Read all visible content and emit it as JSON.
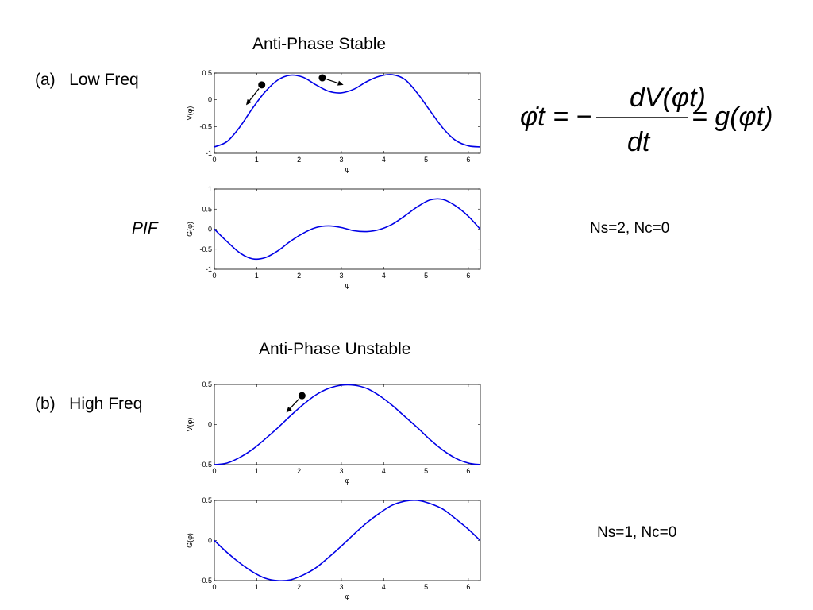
{
  "sections": [
    {
      "title": "Anti-Phase Stable",
      "label": "(a)   Low Freq",
      "side_label": "PIF",
      "stats": "Ns=2, Nc=0"
    },
    {
      "title": "Anti-Phase Unstable",
      "label": "(b)   High Freq",
      "stats": "Ns=1, Nc=0"
    }
  ],
  "equation": {
    "lhs": "φ̇t = −",
    "numerator": "dV(φt)",
    "denominator": "dt",
    "rhs": "= g(φt)"
  },
  "colors": {
    "curve": "#0000e6",
    "axis": "#000000"
  },
  "chart_data": [
    {
      "type": "line",
      "id": "low-V",
      "xlabel": "φ",
      "ylabel": "V(φ)",
      "xlim": [
        0,
        6.2832
      ],
      "ylim": [
        -1,
        0.5
      ],
      "xticks": [
        "0",
        "1",
        "2",
        "3",
        "4",
        "5",
        "6"
      ],
      "yticks": [
        "-1",
        "-0.5",
        "0",
        "0.5"
      ],
      "series": [
        {
          "x": [
            0,
            0.3,
            0.6,
            0.9,
            1.2,
            1.5,
            1.8,
            2.1,
            2.4,
            2.7,
            3.0,
            3.3,
            3.6,
            3.9,
            4.2,
            4.5,
            4.8,
            5.1,
            5.4,
            5.7,
            6.0,
            6.28
          ],
          "values": [
            -0.88,
            -0.78,
            -0.51,
            -0.16,
            0.15,
            0.37,
            0.46,
            0.42,
            0.28,
            0.16,
            0.13,
            0.2,
            0.34,
            0.44,
            0.47,
            0.38,
            0.12,
            -0.21,
            -0.53,
            -0.76,
            -0.86,
            -0.88
          ]
        }
      ],
      "annotations": [
        {
          "kind": "ball",
          "x": 1.12,
          "y": 0.28,
          "arrow_to": [
            0.75,
            -0.1
          ]
        },
        {
          "kind": "ball",
          "x": 2.55,
          "y": 0.41,
          "arrow_to": [
            3.05,
            0.28
          ]
        }
      ]
    },
    {
      "type": "line",
      "id": "low-G",
      "xlabel": "φ",
      "ylabel": "G(φ)",
      "xlim": [
        0,
        6.2832
      ],
      "ylim": [
        -1,
        1
      ],
      "xticks": [
        "0",
        "1",
        "2",
        "3",
        "4",
        "5",
        "6"
      ],
      "yticks": [
        "-1",
        "-0.5",
        "0",
        "0.5",
        "1"
      ],
      "series": [
        {
          "x": [
            0,
            0.3,
            0.6,
            0.9,
            1.2,
            1.5,
            1.8,
            2.1,
            2.4,
            2.7,
            3.0,
            3.3,
            3.6,
            3.9,
            4.2,
            4.5,
            4.8,
            5.1,
            5.4,
            5.7,
            6.0,
            6.28
          ],
          "values": [
            0.0,
            -0.31,
            -0.59,
            -0.74,
            -0.71,
            -0.54,
            -0.3,
            -0.1,
            0.04,
            0.08,
            0.04,
            -0.04,
            -0.06,
            -0.01,
            0.12,
            0.33,
            0.56,
            0.73,
            0.74,
            0.58,
            0.32,
            0.0
          ]
        }
      ]
    },
    {
      "type": "line",
      "id": "high-V",
      "xlabel": "φ",
      "ylabel": "V(φ)",
      "xlim": [
        0,
        6.2832
      ],
      "ylim": [
        -0.5,
        0.5
      ],
      "xticks": [
        "0",
        "1",
        "2",
        "3",
        "4",
        "5",
        "6"
      ],
      "yticks": [
        "-0.5",
        "0",
        "0.5"
      ],
      "series": [
        {
          "x": [
            0,
            0.3,
            0.6,
            0.9,
            1.2,
            1.5,
            1.8,
            2.1,
            2.4,
            2.7,
            3.0,
            3.3,
            3.6,
            3.9,
            4.2,
            4.5,
            4.8,
            5.1,
            5.4,
            5.7,
            6.0,
            6.28
          ],
          "values": [
            -0.5,
            -0.48,
            -0.41,
            -0.31,
            -0.18,
            -0.04,
            0.11,
            0.25,
            0.37,
            0.45,
            0.49,
            0.49,
            0.45,
            0.36,
            0.24,
            0.1,
            -0.04,
            -0.19,
            -0.32,
            -0.42,
            -0.48,
            -0.5
          ]
        }
      ],
      "annotations": [
        {
          "kind": "ball",
          "x": 2.07,
          "y": 0.36,
          "arrow_to": [
            1.7,
            0.15
          ]
        }
      ]
    },
    {
      "type": "line",
      "id": "high-G",
      "xlabel": "φ",
      "ylabel": "G(φ)",
      "xlim": [
        0,
        6.2832
      ],
      "ylim": [
        -0.5,
        0.5
      ],
      "xticks": [
        "0",
        "1",
        "2",
        "3",
        "4",
        "5",
        "6"
      ],
      "yticks": [
        "-0.5",
        "0",
        "0.5"
      ],
      "series": [
        {
          "x": [
            0,
            0.3,
            0.6,
            0.9,
            1.2,
            1.5,
            1.8,
            2.1,
            2.4,
            2.7,
            3.0,
            3.3,
            3.6,
            3.9,
            4.2,
            4.5,
            4.8,
            5.1,
            5.4,
            5.7,
            6.0,
            6.28
          ],
          "values": [
            0.0,
            -0.15,
            -0.28,
            -0.39,
            -0.47,
            -0.5,
            -0.49,
            -0.43,
            -0.34,
            -0.21,
            -0.07,
            0.08,
            0.22,
            0.34,
            0.44,
            0.49,
            0.5,
            0.46,
            0.39,
            0.27,
            0.14,
            0.0
          ]
        }
      ]
    }
  ]
}
